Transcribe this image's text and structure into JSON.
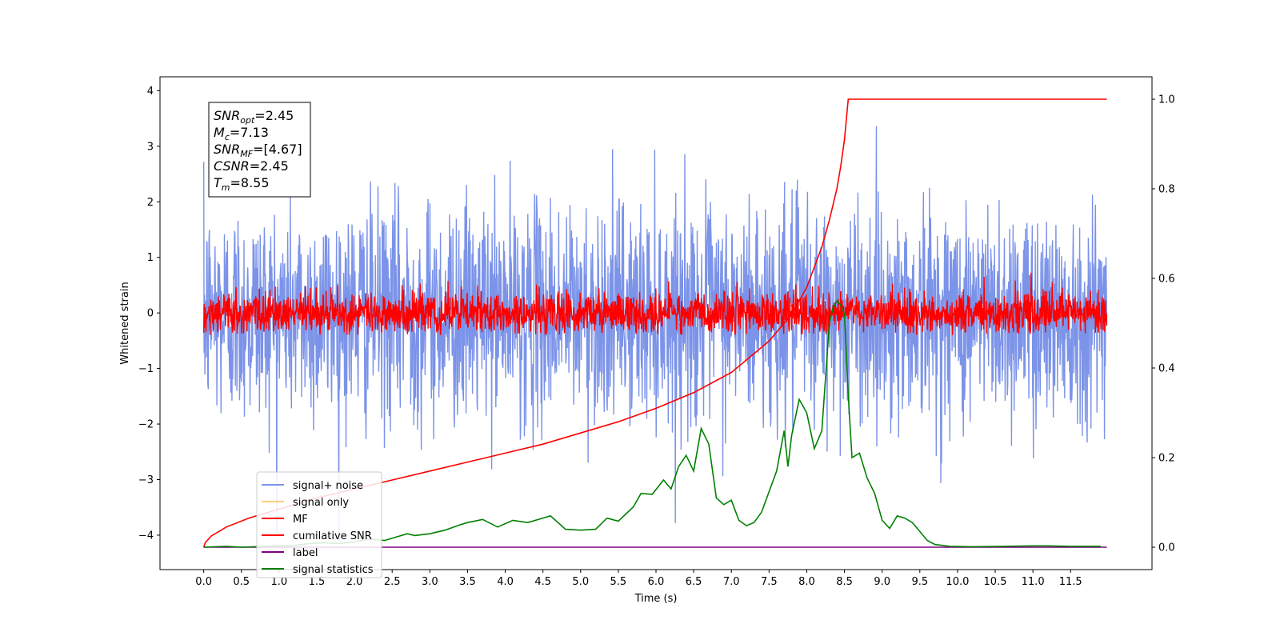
{
  "chart_data": {
    "type": "line",
    "xlabel": "Time (s)",
    "ylabel": "Whitened strain",
    "xlim": [
      -0.58,
      12.58
    ],
    "ylim": [
      -4.62,
      4.25
    ],
    "y2lim": [
      -0.05,
      1.05
    ],
    "grid": false,
    "x_ticks": [
      "0.0",
      "0.5",
      "1.0",
      "1.5",
      "2.0",
      "2.5",
      "3.0",
      "3.5",
      "4.0",
      "4.5",
      "5.0",
      "5.5",
      "6.0",
      "6.5",
      "7.0",
      "7.5",
      "8.0",
      "8.5",
      "9.0",
      "9.5",
      "10.0",
      "10.5",
      "11.0",
      "11.5"
    ],
    "x_tick_values": [
      0,
      0.5,
      1,
      1.5,
      2,
      2.5,
      3,
      3.5,
      4,
      4.5,
      5,
      5.5,
      6,
      6.5,
      7,
      7.5,
      8,
      8.5,
      9,
      9.5,
      10,
      10.5,
      11,
      11.5
    ],
    "y_ticks": [
      "4",
      "3",
      "2",
      "1",
      "0",
      "−1",
      "−2",
      "−3",
      "−4"
    ],
    "y_tick_values": [
      4,
      3,
      2,
      1,
      0,
      -1,
      -2,
      -3,
      -4
    ],
    "y2_ticks": [
      "1.0",
      "0.8",
      "0.6",
      "0.4",
      "0.2",
      "0.0"
    ],
    "y2_tick_values": [
      1.0,
      0.8,
      0.6,
      0.4,
      0.2,
      0.0
    ],
    "legend": {
      "placement": "lower-left",
      "entries": [
        {
          "label": "signal+ noise",
          "color": "#7b93e8"
        },
        {
          "label": "signal only",
          "color": "#ffcc80"
        },
        {
          "label": "MF",
          "color": "#ff0000"
        },
        {
          "label": "cumilative SNR",
          "color": "#ff0000"
        },
        {
          "label": "label",
          "color": "#800080"
        },
        {
          "label": "signal statistics",
          "color": "#008000"
        }
      ]
    },
    "annotation": {
      "placement": "top-left",
      "lines": [
        {
          "sym": "SNR",
          "sub": "opt",
          "value": "=2.45"
        },
        {
          "sym": "M",
          "sub": "c",
          "value": "=7.13"
        },
        {
          "sym": "SNR",
          "sub": "MF",
          "value": "=[4.67]"
        },
        {
          "sym": "CSNR",
          "sub": "",
          "value": "=2.45"
        },
        {
          "sym": "T",
          "sub": "m",
          "value": "=8.55"
        }
      ]
    },
    "series": [
      {
        "name": "signal+ noise",
        "axis": "left",
        "color": "#7b93e8",
        "kind": "noise",
        "mean": 0.0,
        "std": 0.98,
        "x_range": [
          0,
          11.98
        ],
        "max": 3.87,
        "min": -4.15
      },
      {
        "name": "MF",
        "axis": "left",
        "color": "#ff0000",
        "kind": "noise",
        "mean": 0.0,
        "std": 0.2,
        "x_range": [
          0,
          11.98
        ],
        "max": 0.75,
        "min": -0.4
      },
      {
        "name": "cumilative SNR",
        "axis": "right",
        "color": "#ff0000",
        "x": [
          0,
          0.02,
          0.1,
          0.3,
          0.6,
          1.0,
          1.5,
          2.0,
          2.5,
          3.0,
          3.5,
          4.0,
          4.5,
          5.0,
          5.5,
          6.0,
          6.5,
          7.0,
          7.5,
          7.8,
          8.0,
          8.2,
          8.3,
          8.4,
          8.45,
          8.5,
          8.55,
          9.0,
          10.0,
          11.0,
          11.98
        ],
        "y": [
          0.0,
          0.01,
          0.025,
          0.045,
          0.065,
          0.085,
          0.11,
          0.13,
          0.15,
          0.17,
          0.19,
          0.21,
          0.23,
          0.255,
          0.28,
          0.31,
          0.345,
          0.39,
          0.46,
          0.52,
          0.58,
          0.67,
          0.73,
          0.8,
          0.85,
          0.91,
          1.0,
          1.0,
          1.0,
          1.0,
          1.0
        ]
      },
      {
        "name": "label",
        "axis": "right",
        "color": "#800080",
        "x": [
          0,
          11.98
        ],
        "y": [
          0.0,
          0.0
        ]
      },
      {
        "name": "signal statistics",
        "axis": "right",
        "color": "#008000",
        "x": [
          0,
          0.3,
          0.5,
          1.0,
          1.2,
          1.4,
          1.6,
          1.8,
          2.0,
          2.2,
          2.4,
          2.6,
          2.7,
          2.8,
          3.0,
          3.2,
          3.4,
          3.5,
          3.7,
          3.9,
          4.1,
          4.3,
          4.5,
          4.6,
          4.8,
          5.0,
          5.2,
          5.35,
          5.5,
          5.7,
          5.8,
          5.95,
          6.1,
          6.2,
          6.3,
          6.4,
          6.5,
          6.6,
          6.7,
          6.8,
          6.9,
          7.0,
          7.1,
          7.2,
          7.3,
          7.4,
          7.6,
          7.7,
          7.75,
          7.8,
          7.9,
          8.0,
          8.1,
          8.2,
          8.3,
          8.35,
          8.4,
          8.45,
          8.5,
          8.55,
          8.6,
          8.7,
          8.8,
          8.9,
          9.0,
          9.1,
          9.2,
          9.3,
          9.4,
          9.5,
          9.6,
          9.7,
          9.9,
          10.2,
          10.6,
          11.0,
          11.2,
          11.5,
          11.9
        ],
        "y": [
          0.0,
          0.002,
          0.0,
          0.003,
          0.004,
          0.008,
          0.01,
          0.008,
          0.012,
          0.018,
          0.015,
          0.025,
          0.03,
          0.026,
          0.03,
          0.038,
          0.05,
          0.055,
          0.062,
          0.045,
          0.06,
          0.055,
          0.065,
          0.07,
          0.04,
          0.038,
          0.04,
          0.065,
          0.058,
          0.09,
          0.12,
          0.118,
          0.15,
          0.13,
          0.18,
          0.205,
          0.17,
          0.265,
          0.23,
          0.11,
          0.095,
          0.105,
          0.06,
          0.048,
          0.055,
          0.078,
          0.17,
          0.26,
          0.18,
          0.25,
          0.33,
          0.3,
          0.22,
          0.26,
          0.5,
          0.535,
          0.55,
          0.54,
          0.52,
          0.34,
          0.2,
          0.21,
          0.155,
          0.12,
          0.06,
          0.042,
          0.07,
          0.065,
          0.055,
          0.035,
          0.015,
          0.006,
          0.002,
          0.001,
          0.002,
          0.003,
          0.003,
          0.002,
          0.002
        ]
      }
    ]
  }
}
